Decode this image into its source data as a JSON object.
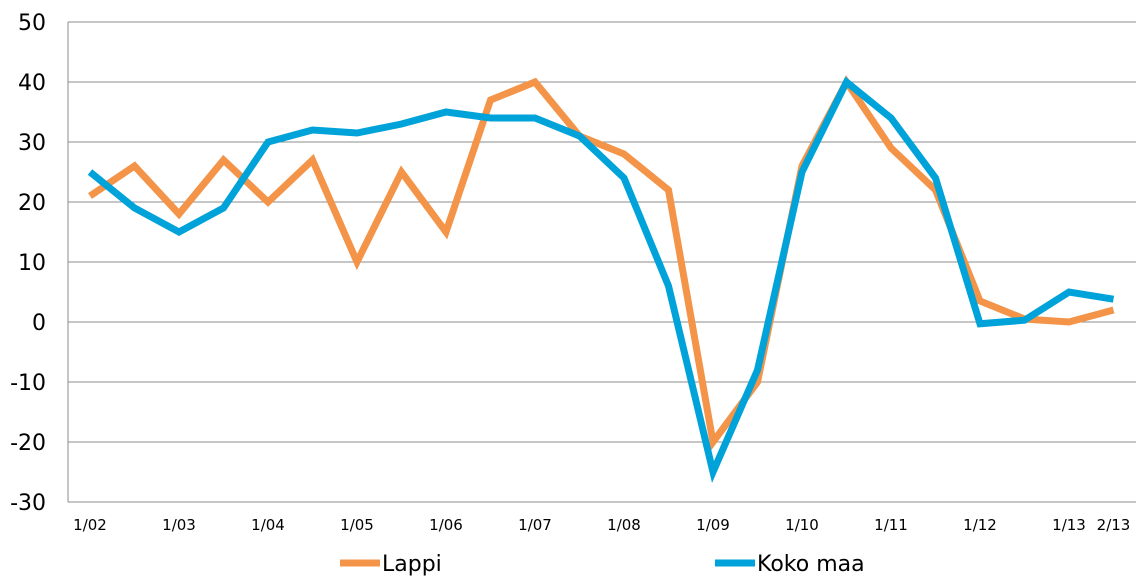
{
  "chart_data": {
    "type": "line",
    "title": "",
    "xlabel": "",
    "ylabel": "",
    "ylim": [
      -30,
      50
    ],
    "yticks": [
      -30,
      -20,
      -10,
      0,
      10,
      20,
      30,
      40,
      50
    ],
    "grid": true,
    "legend_position": "bottom",
    "x": [
      "1/02",
      "2/02",
      "1/03",
      "2/03",
      "1/04",
      "2/04",
      "1/05",
      "2/05",
      "1/06",
      "2/06",
      "1/07",
      "2/07",
      "1/08",
      "2/08",
      "1/09",
      "2/09",
      "1/10",
      "2/10",
      "1/11",
      "2/11",
      "1/12",
      "2/12",
      "1/13",
      "2/13"
    ],
    "xtick_labels": [
      "1/02",
      "",
      "1/03",
      "",
      "1/04",
      "",
      "1/05",
      "",
      "1/06",
      "",
      "1/07",
      "",
      "1/08",
      "",
      "1/09",
      "",
      "1/10",
      "",
      "1/11",
      "",
      "1/12",
      "",
      "1/13",
      "2/13"
    ],
    "series": [
      {
        "name": "Lappi",
        "color": "#F39449",
        "values": [
          21,
          26,
          18,
          27,
          20,
          27,
          10,
          25,
          15,
          37,
          40,
          31,
          28,
          22,
          -20,
          -10,
          26,
          40,
          29,
          22,
          3.5,
          0.5,
          0,
          2
        ]
      },
      {
        "name": "Koko maa",
        "color": "#00A3D9",
        "values": [
          25,
          19,
          15,
          19,
          30,
          32,
          31.5,
          33,
          35,
          34,
          34,
          31,
          24,
          6,
          -25,
          -8,
          25,
          40,
          34,
          24,
          -0.3,
          0.3,
          5,
          3.8
        ]
      }
    ]
  }
}
